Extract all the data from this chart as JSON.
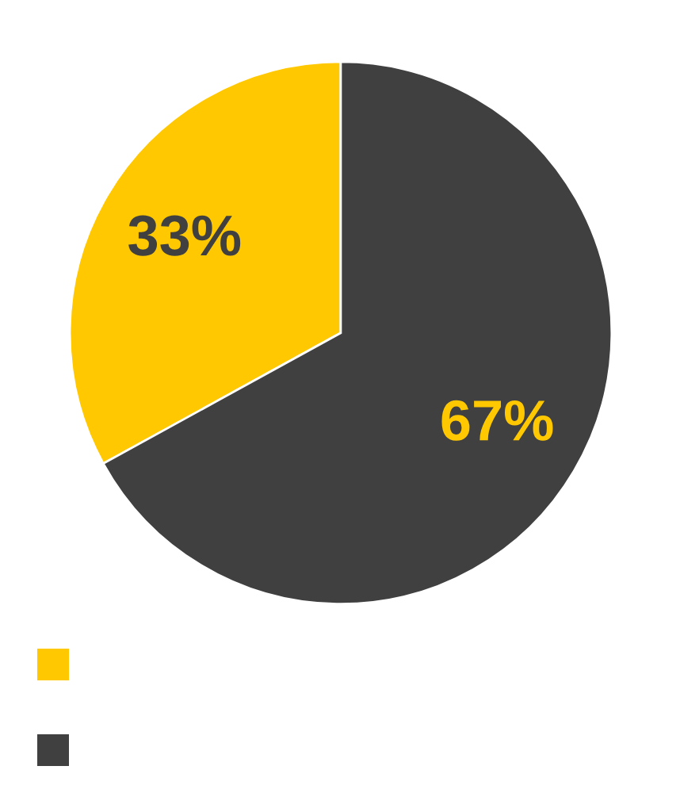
{
  "chart_data": {
    "type": "pie",
    "categories": [
      null,
      null
    ],
    "values": [
      33,
      67
    ],
    "colors": [
      "#ffc800",
      "#404040"
    ],
    "value_labels": [
      "33%",
      "67%"
    ]
  }
}
